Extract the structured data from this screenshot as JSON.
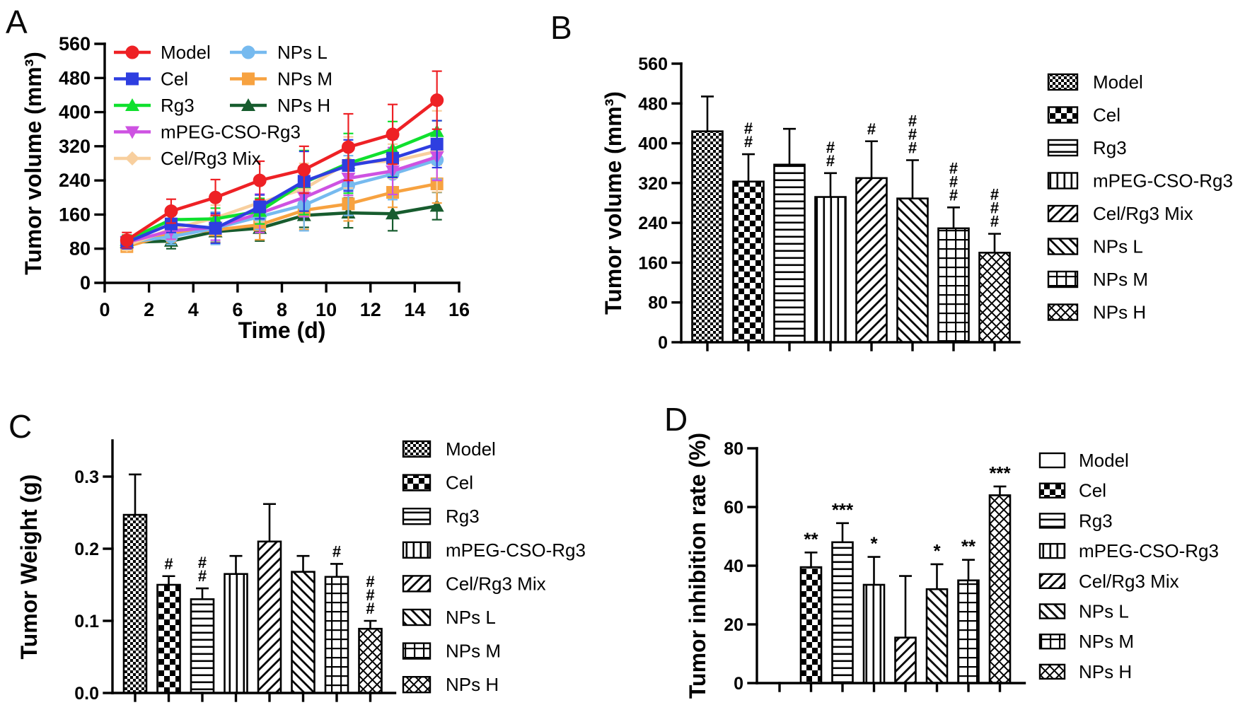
{
  "panels": {
    "a": {
      "letter": "A"
    },
    "b": {
      "letter": "B"
    },
    "c": {
      "letter": "C"
    },
    "d": {
      "letter": "D"
    }
  },
  "groups": [
    "Model",
    "Cel",
    "Rg3",
    "mPEG-CSO-Rg3",
    "Cel/Rg3 Mix",
    "NPs L",
    "NPs M",
    "NPs H"
  ],
  "chart_data": [
    {
      "id": "A",
      "type": "line",
      "title": "",
      "xlabel": "Time (d)",
      "ylabel": "Tumor volume (mm³)",
      "xlim": [
        0,
        16
      ],
      "ylim": [
        0,
        560
      ],
      "xticks": [
        0,
        2,
        4,
        6,
        8,
        10,
        12,
        14,
        16
      ],
      "xtick_labels": [
        "0",
        "2",
        "4",
        "6",
        "8",
        "10",
        "12",
        "14",
        "16"
      ],
      "yticks": [
        0,
        80,
        160,
        240,
        320,
        400,
        480,
        560
      ],
      "ytick_labels": [
        "0",
        "80",
        "160",
        "240",
        "320",
        "400",
        "480",
        "560"
      ],
      "x": [
        1,
        3,
        5,
        7,
        9,
        11,
        13,
        15
      ],
      "grid": false,
      "legend_position": "inside-top-left-two-columns",
      "series": [
        {
          "name": "Model",
          "color": "#EE2125",
          "marker": "circle",
          "values": [
            100,
            168,
            200,
            240,
            265,
            318,
            348,
            428
          ],
          "errors": [
            18,
            28,
            42,
            45,
            55,
            78,
            70,
            68
          ]
        },
        {
          "name": "Cel",
          "color": "#2E3EE0",
          "marker": "square",
          "values": [
            95,
            138,
            128,
            178,
            238,
            275,
            292,
            325
          ],
          "errors": [
            15,
            20,
            35,
            28,
            70,
            60,
            45,
            55
          ]
        },
        {
          "name": "Rg3",
          "color": "#10E02E",
          "marker": "triangle-up",
          "values": [
            100,
            148,
            150,
            168,
            235,
            280,
            313,
            355
          ],
          "errors": [
            12,
            18,
            25,
            30,
            75,
            70,
            65,
            25
          ]
        },
        {
          "name": "mPEG-CSO-Rg3",
          "color": "#CE52E2",
          "marker": "triangle-down",
          "values": [
            95,
            122,
            130,
            163,
            200,
            245,
            262,
            295
          ],
          "errors": [
            15,
            20,
            30,
            45,
            45,
            40,
            55,
            55
          ]
        },
        {
          "name": "Cel/Rg3 Mix",
          "color": "#F8CF9E",
          "marker": "diamond",
          "values": [
            88,
            126,
            152,
            188,
            220,
            282,
            285,
            308
          ],
          "errors": [
            12,
            25,
            30,
            45,
            60,
            60,
            40,
            95
          ]
        },
        {
          "name": "NPs L",
          "color": "#76BAEF",
          "marker": "circle",
          "values": [
            95,
            108,
            128,
            155,
            182,
            228,
            255,
            288
          ],
          "errors": [
            14,
            18,
            38,
            30,
            60,
            70,
            60,
            45
          ]
        },
        {
          "name": "NPs M",
          "color": "#F7A240",
          "marker": "square",
          "values": [
            85,
            115,
            124,
            136,
            170,
            185,
            212,
            232
          ],
          "errors": [
            12,
            20,
            30,
            35,
            45,
            40,
            35,
            45
          ]
        },
        {
          "name": "NPs H",
          "color": "#175C2E",
          "marker": "triangle-up",
          "values": [
            95,
            98,
            120,
            128,
            158,
            164,
            162,
            180
          ],
          "errors": [
            10,
            18,
            25,
            30,
            28,
            35,
            40,
            32
          ]
        }
      ]
    },
    {
      "id": "B",
      "type": "bar",
      "title": "",
      "ylabel": "Tumor volume (mm³)",
      "ylim": [
        0,
        560
      ],
      "yticks": [
        0,
        80,
        160,
        240,
        320,
        400,
        480,
        560
      ],
      "ytick_labels": [
        "0",
        "80",
        "160",
        "240",
        "320",
        "400",
        "480",
        "560"
      ],
      "categories": [
        "Model",
        "Cel",
        "Rg3",
        "mPEG-CSO-Rg3",
        "Cel/Rg3 Mix",
        "NPs L",
        "NPs M",
        "NPs H"
      ],
      "values": [
        424,
        323,
        357,
        292,
        330,
        289,
        229,
        180
      ],
      "errors": [
        70,
        55,
        72,
        48,
        74,
        77,
        42,
        38
      ],
      "annotations": [
        "",
        "##",
        "",
        "##",
        "#",
        "###",
        "###",
        "###"
      ],
      "patterns": [
        "checker-fine",
        "checker-coarse",
        "hlines",
        "vlines",
        "diag-right",
        "diag-left",
        "grid",
        "diamond"
      ],
      "legend_position": "right"
    },
    {
      "id": "C",
      "type": "bar",
      "title": "",
      "ylabel": "Tumor Weight (g)",
      "ylim": [
        0,
        0.35
      ],
      "yticks": [
        0,
        0.1,
        0.2,
        0.3
      ],
      "ytick_labels": [
        "0.0",
        "0.1",
        "0.2",
        "0.3"
      ],
      "categories": [
        "Model",
        "Cel",
        "Rg3",
        "mPEG-CSO-Rg3",
        "Cel/Rg3 Mix",
        "NPs L",
        "NPs M",
        "NPs H"
      ],
      "values": [
        0.247,
        0.15,
        0.13,
        0.165,
        0.21,
        0.168,
        0.161,
        0.089
      ],
      "errors": [
        0.056,
        0.012,
        0.015,
        0.025,
        0.052,
        0.022,
        0.018,
        0.011
      ],
      "annotations": [
        "",
        "#",
        "##",
        "",
        "",
        "",
        "#",
        "###"
      ],
      "patterns": [
        "checker-fine",
        "checker-coarse",
        "hlines",
        "vlines",
        "diag-right",
        "diag-left",
        "grid",
        "diamond"
      ],
      "legend_position": "right"
    },
    {
      "id": "D",
      "type": "bar",
      "title": "",
      "ylabel": "Tumor inhibition rate (%)",
      "ylim": [
        0,
        80
      ],
      "yticks": [
        0,
        20,
        40,
        60,
        80
      ],
      "ytick_labels": [
        "0",
        "20",
        "40",
        "60",
        "80"
      ],
      "categories": [
        "Model",
        "Cel",
        "Rg3",
        "mPEG-CSO-Rg3",
        "Cel/Rg3 Mix",
        "NPs L",
        "NPs M",
        "NPs H"
      ],
      "values": [
        0,
        39.5,
        48,
        33.5,
        15.5,
        32,
        35,
        64
      ],
      "errors": [
        0,
        5,
        6.5,
        9.5,
        21,
        8.5,
        7,
        3
      ],
      "annotations": [
        "",
        "**",
        "***",
        "*",
        "",
        "*",
        "**",
        "***"
      ],
      "patterns": [
        "plain",
        "checker-coarse",
        "hlines",
        "vlines",
        "diag-right",
        "diag-left",
        "grid",
        "diamond"
      ],
      "legend_position": "right"
    }
  ]
}
